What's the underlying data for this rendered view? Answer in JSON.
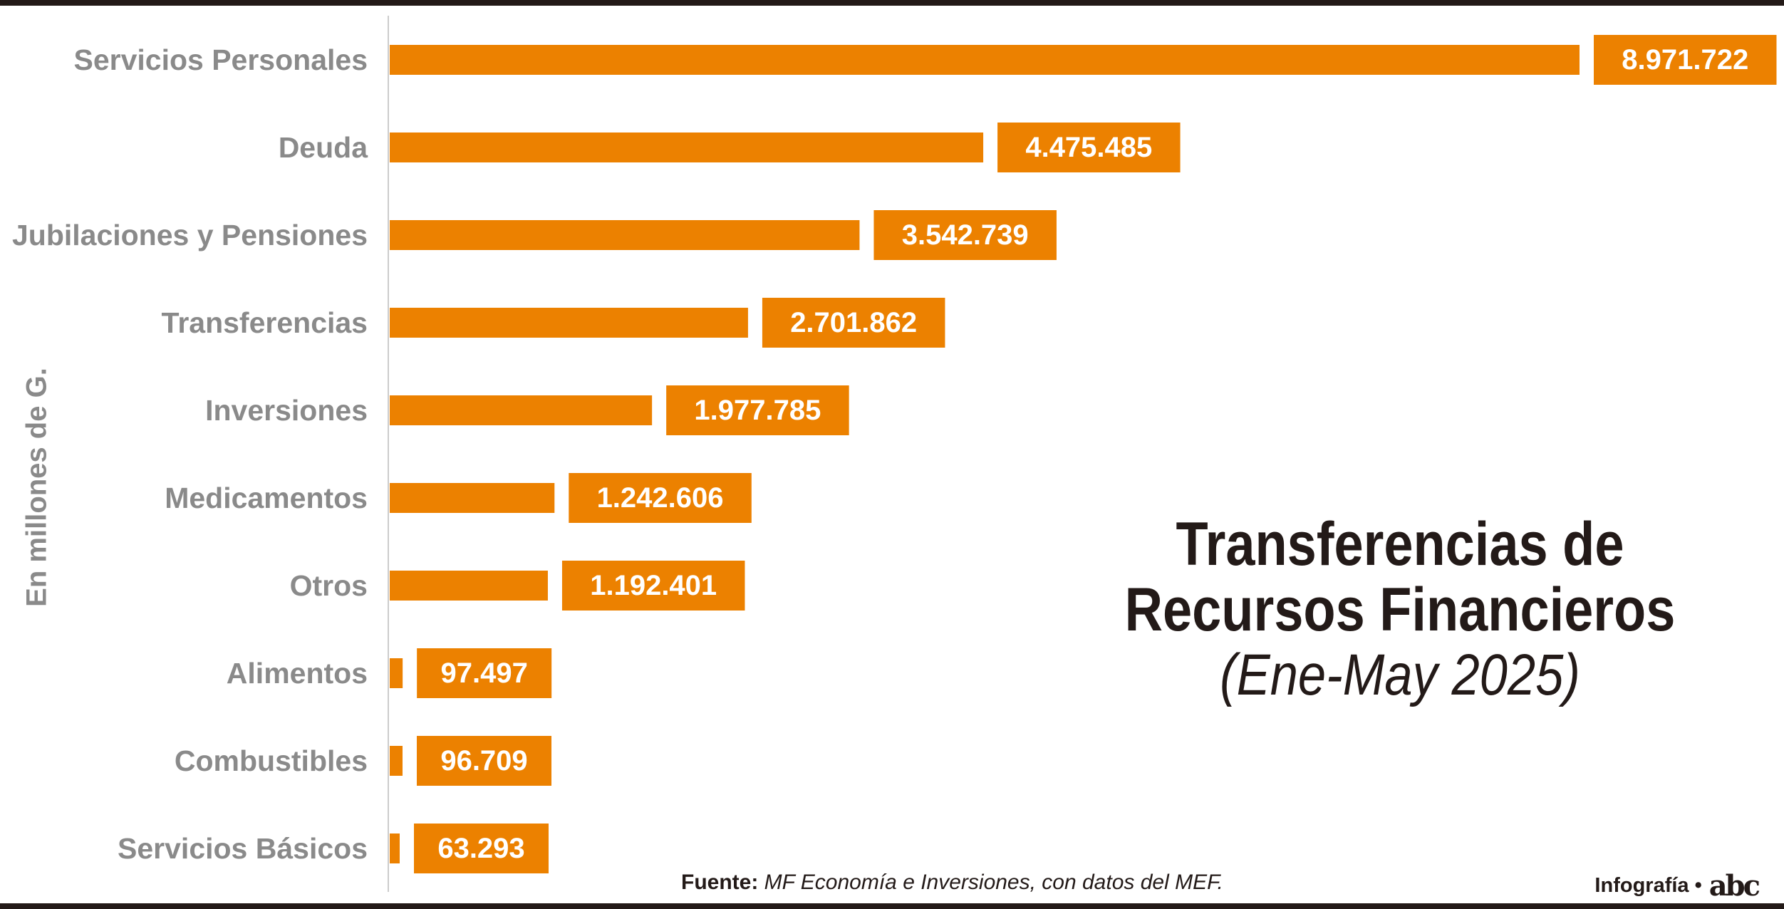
{
  "chart_data": {
    "type": "bar",
    "orientation": "horizontal",
    "categories": [
      "Servicios Personales",
      "Deuda",
      "Jubilaciones y Pensiones",
      "Transferencias",
      "Inversiones",
      "Medicamentos",
      "Otros",
      "Alimentos",
      "Combustibles",
      "Servicios Básicos"
    ],
    "values": [
      8971722,
      4475485,
      3542739,
      2701862,
      1977785,
      1242606,
      1192401,
      97497,
      96709,
      63293
    ],
    "value_labels": [
      "8.971.722",
      "4.475.485",
      "3.542.739",
      "2.701.862",
      "1.977.785",
      "1.242.606",
      "1.192.401",
      "97.497",
      "96.709",
      "63.293"
    ],
    "title": "Transferencias de Recursos Financieros",
    "title_lines": [
      "Transferencias de",
      "Recursos Financieros"
    ],
    "subtitle": "(Ene-May 2025)",
    "ylabel": "En millones de G.",
    "xlim": [
      0,
      8971722
    ],
    "grid": false,
    "legend": "none",
    "bar_color": "#ec8100"
  },
  "footer": {
    "source_label": "Fuente:",
    "source_text": "MF Economía e Inversiones, con datos del MEF.",
    "credit": "Infografía •",
    "logo": "abc"
  },
  "colors": {
    "rule": "#231a18",
    "label": "#8a8a8a",
    "title": "#231a18"
  }
}
